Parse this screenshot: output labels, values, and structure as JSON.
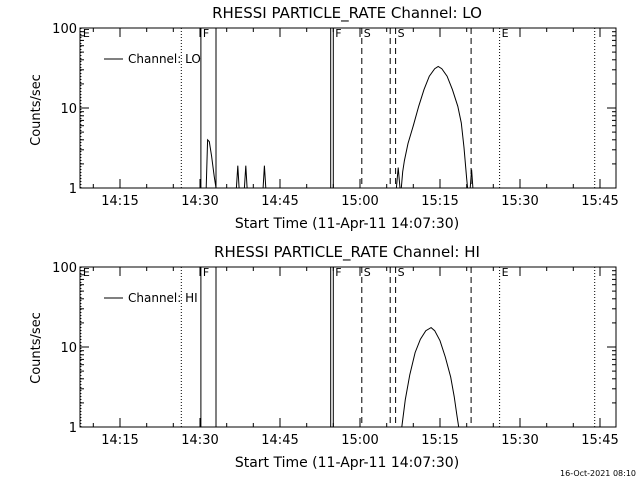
{
  "timestamp": "16-Oct-2021 08:10",
  "chart_data": [
    {
      "type": "line",
      "title": "RHESSI PARTICLE_RATE Channel: LO",
      "xlabel": "Start Time (11-Apr-11 14:07:30)",
      "ylabel": "Counts/sec",
      "yscale": "log",
      "ylim": [
        1,
        100
      ],
      "xlim": [
        "14:07:30",
        "15:48:00"
      ],
      "x_ticks": [
        "14:15",
        "14:30",
        "14:45",
        "15:00",
        "15:15",
        "15:30",
        "15:45"
      ],
      "y_ticks": [
        "1",
        "10",
        "100"
      ],
      "legend": {
        "label": "Channel: LO",
        "placement": "top-left"
      },
      "series": [
        {
          "name": "Channel: LO",
          "points": [
            [
              "14:31:10",
              1
            ],
            [
              "14:31:25",
              4.0
            ],
            [
              "14:31:45",
              3.8
            ],
            [
              "14:32:10",
              2.5
            ],
            [
              "14:32:40",
              1.4
            ],
            [
              "14:33:00",
              1
            ],
            [
              "14:36:50",
              1
            ],
            [
              "14:37:05",
              1.9
            ],
            [
              "14:37:20",
              1
            ],
            [
              "14:38:20",
              1
            ],
            [
              "14:38:35",
              1.9
            ],
            [
              "14:38:50",
              1
            ],
            [
              "14:41:50",
              1
            ],
            [
              "14:42:05",
              1.9
            ],
            [
              "14:42:20",
              1
            ],
            [
              "15:06:50",
              1
            ],
            [
              "15:07:10",
              1.8
            ],
            [
              "15:07:30",
              1
            ],
            [
              "15:07:45",
              1
            ],
            [
              "15:08:00",
              1.6
            ],
            [
              "15:08:20",
              2.2
            ],
            [
              "15:09:00",
              3.6
            ],
            [
              "15:10:00",
              6.0
            ],
            [
              "15:11:00",
              10.5
            ],
            [
              "15:12:00",
              17
            ],
            [
              "15:13:00",
              25
            ],
            [
              "15:14:00",
              31
            ],
            [
              "15:14:40",
              33
            ],
            [
              "15:15:20",
              31
            ],
            [
              "15:16:20",
              25
            ],
            [
              "15:17:20",
              17
            ],
            [
              "15:18:20",
              10.5
            ],
            [
              "15:19:00",
              6.5
            ],
            [
              "15:19:30",
              3.2
            ],
            [
              "15:20:00",
              1.3
            ],
            [
              "15:20:10",
              1
            ],
            [
              "15:20:40",
              1
            ],
            [
              "15:20:55",
              1.7
            ],
            [
              "15:21:10",
              1
            ]
          ]
        }
      ],
      "markers": [
        {
          "label": "E",
          "time": "14:07:40",
          "style": "dotted"
        },
        {
          "label": "",
          "time": "14:26:30",
          "style": "dotted"
        },
        {
          "label": "F",
          "time": "14:30:10",
          "style": "solid"
        },
        {
          "label": "",
          "time": "14:33:00",
          "style": "solid"
        },
        {
          "label": "",
          "time": "14:54:30",
          "style": "solid"
        },
        {
          "label": "F",
          "time": "14:55:00",
          "style": "solid"
        },
        {
          "label": "S",
          "time": "15:00:20",
          "style": "dashed"
        },
        {
          "label": "",
          "time": "15:05:40",
          "style": "dashed"
        },
        {
          "label": "S",
          "time": "15:06:40",
          "style": "dashed"
        },
        {
          "label": "",
          "time": "15:20:50",
          "style": "dashed"
        },
        {
          "label": "E",
          "time": "15:26:10",
          "style": "dotted"
        },
        {
          "label": "",
          "time": "15:44:00",
          "style": "dotted"
        }
      ]
    },
    {
      "type": "line",
      "title": "RHESSI PARTICLE_RATE Channel: HI",
      "xlabel": "Start Time (11-Apr-11 14:07:30)",
      "ylabel": "Counts/sec",
      "yscale": "log",
      "ylim": [
        1,
        100
      ],
      "xlim": [
        "14:07:30",
        "15:48:00"
      ],
      "x_ticks": [
        "14:15",
        "14:30",
        "14:45",
        "15:00",
        "15:15",
        "15:30",
        "15:45"
      ],
      "y_ticks": [
        "1",
        "10",
        "100"
      ],
      "legend": {
        "label": "Channel: HI",
        "placement": "top-left"
      },
      "series": [
        {
          "name": "Channel: HI",
          "points": [
            [
              "15:07:50",
              1
            ],
            [
              "15:08:30",
              2.2
            ],
            [
              "15:09:20",
              4.5
            ],
            [
              "15:10:20",
              8.5
            ],
            [
              "15:11:20",
              12.5
            ],
            [
              "15:12:20",
              16
            ],
            [
              "15:13:20",
              17.5
            ],
            [
              "15:14:00",
              16
            ],
            [
              "15:15:00",
              12
            ],
            [
              "15:16:00",
              7.5
            ],
            [
              "15:17:00",
              4.2
            ],
            [
              "15:17:40",
              2.4
            ],
            [
              "15:18:10",
              1.4
            ],
            [
              "15:18:30",
              1
            ]
          ]
        }
      ],
      "markers": [
        {
          "label": "E",
          "time": "14:07:40",
          "style": "dotted"
        },
        {
          "label": "",
          "time": "14:26:30",
          "style": "dotted"
        },
        {
          "label": "F",
          "time": "14:30:10",
          "style": "solid"
        },
        {
          "label": "",
          "time": "14:33:00",
          "style": "solid"
        },
        {
          "label": "",
          "time": "14:54:30",
          "style": "solid"
        },
        {
          "label": "F",
          "time": "14:55:00",
          "style": "solid"
        },
        {
          "label": "S",
          "time": "15:00:20",
          "style": "dashed"
        },
        {
          "label": "",
          "time": "15:05:40",
          "style": "dashed"
        },
        {
          "label": "S",
          "time": "15:06:40",
          "style": "dashed"
        },
        {
          "label": "",
          "time": "15:20:50",
          "style": "dashed"
        },
        {
          "label": "E",
          "time": "15:26:10",
          "style": "dotted"
        },
        {
          "label": "",
          "time": "15:44:00",
          "style": "dotted"
        }
      ]
    }
  ]
}
